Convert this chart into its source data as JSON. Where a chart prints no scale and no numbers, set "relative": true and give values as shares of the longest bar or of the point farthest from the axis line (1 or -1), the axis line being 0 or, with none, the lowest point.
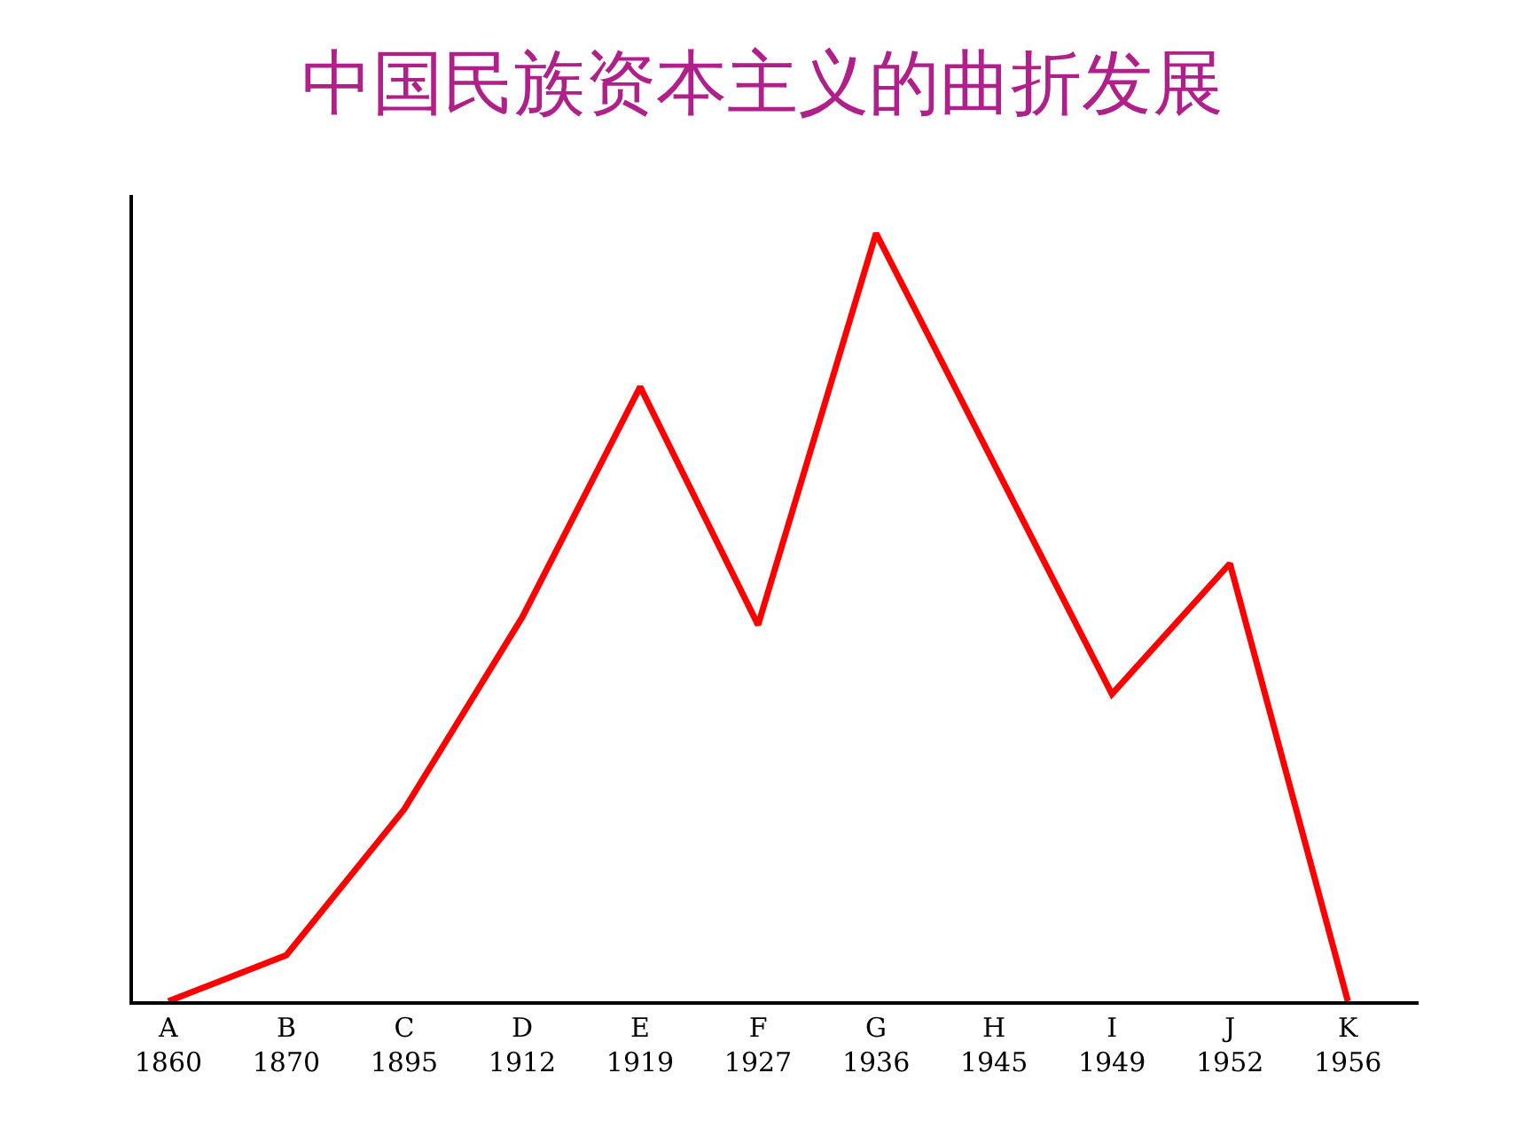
{
  "chart_data": {
    "type": "line",
    "title": "中国民族资本主义的曲折发展",
    "relative": true,
    "categories": [
      "A\n1860",
      "B\n1870",
      "C\n1895",
      "D\n1912",
      "E\n1919",
      "F\n1927",
      "G\n1936",
      "H\n1945",
      "I\n1949",
      "J\n1952",
      "K\n1956"
    ],
    "series": [
      {
        "color": "#ff0000",
        "values": [
          0,
          0.06,
          0.25,
          0.5,
          0.8,
          0.49,
          1,
          0.7,
          0.4,
          0.57,
          0
        ]
      }
    ],
    "legend": false,
    "marker": "none",
    "line_style": "solid"
  }
}
